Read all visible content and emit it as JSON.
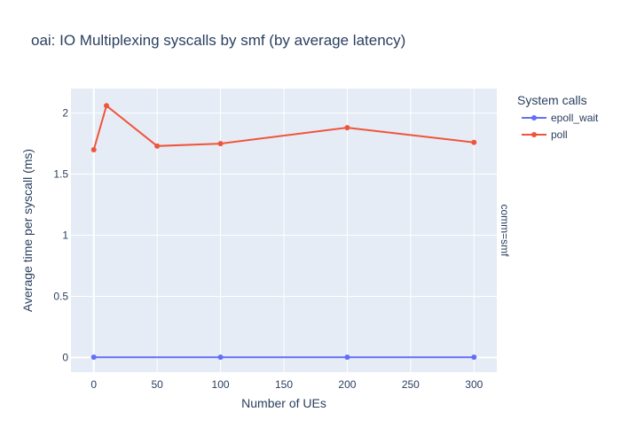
{
  "chart_data": {
    "type": "line",
    "title": "oai: IO Multiplexing syscalls by smf (by average latency)",
    "xlabel": "Number of UEs",
    "ylabel": "Average time per syscall (ms)",
    "facet_label": "comm=smf",
    "legend_title": "System calls",
    "legend_position": "top-right",
    "grid": true,
    "xlim": [
      -18,
      318
    ],
    "ylim": [
      -0.12,
      2.2
    ],
    "x_ticks": [
      0,
      50,
      100,
      150,
      200,
      250,
      300
    ],
    "y_ticks": [
      0,
      0.5,
      1,
      1.5,
      2
    ],
    "y_tick_labels": [
      "0",
      "0.5",
      "1",
      "1.5",
      "2"
    ],
    "series": [
      {
        "name": "epoll_wait",
        "color": "#636efa",
        "x": [
          0,
          100,
          200,
          300
        ],
        "y": [
          0.002,
          0.002,
          0.002,
          0.002
        ]
      },
      {
        "name": "poll",
        "color": "#ef553b",
        "x": [
          0,
          10,
          50,
          100,
          200,
          300
        ],
        "y": [
          1.7,
          2.06,
          1.73,
          1.75,
          1.88,
          1.76
        ]
      }
    ]
  }
}
